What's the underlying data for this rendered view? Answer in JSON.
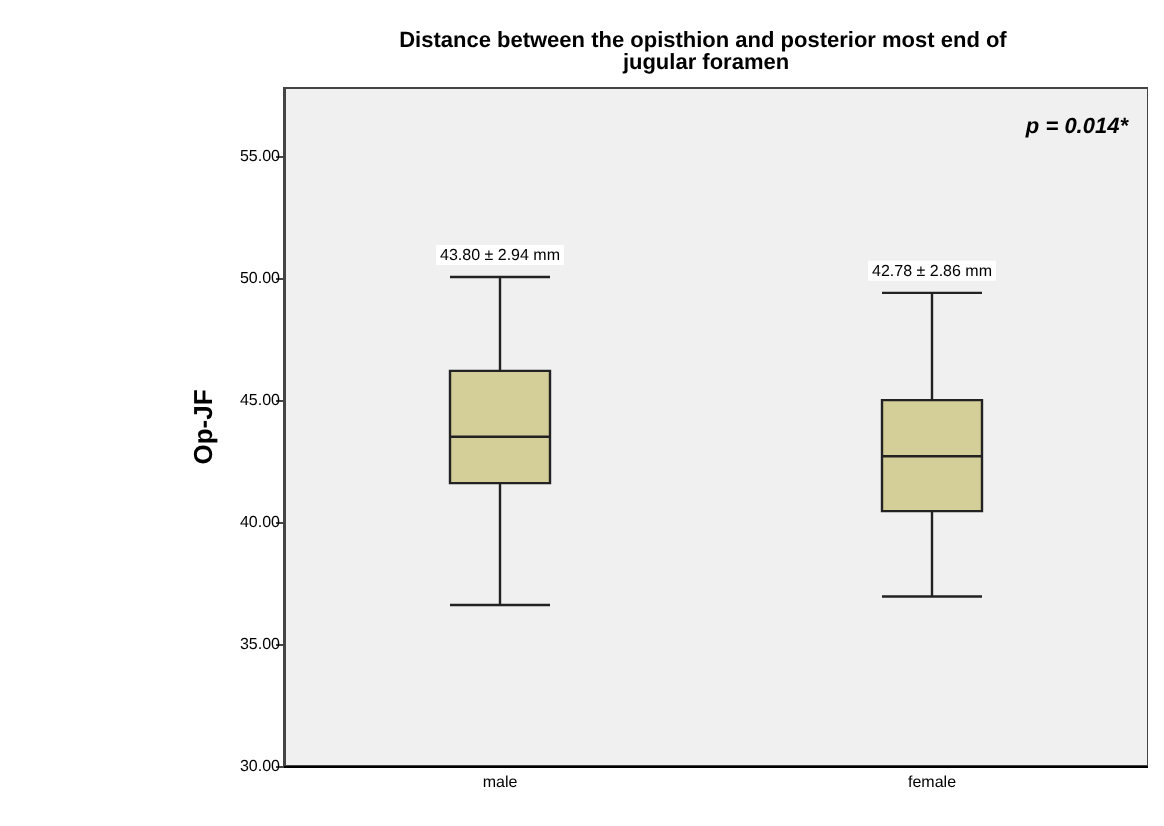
{
  "chart_data": {
    "type": "box",
    "title": "Distance between the opisthion and posterior most end of jugular foramen",
    "ylabel": "Op-JF",
    "categories": [
      "male",
      "female"
    ],
    "color": "#d4cf99",
    "boxes": [
      {
        "low": 36.6,
        "q1": 41.6,
        "median": 43.5,
        "q3": 46.2,
        "high": 50.05
      },
      {
        "low": 36.95,
        "q1": 40.45,
        "median": 42.7,
        "q3": 45.0,
        "high": 49.4
      }
    ],
    "ylim": [
      30,
      57.8
    ],
    "yticks": [
      {
        "value": 30,
        "label": "30.00"
      },
      {
        "value": 35,
        "label": "35.00"
      },
      {
        "value": 40,
        "label": "40.00"
      },
      {
        "value": 45,
        "label": "45.00"
      },
      {
        "value": 50,
        "label": "50.00"
      },
      {
        "value": 55,
        "label": "55.00"
      }
    ],
    "grid": false,
    "annotations": [
      "43.80 ± 2.94 mm",
      "42.78 ± 2.86 mm",
      "p = 0.014*"
    ]
  }
}
